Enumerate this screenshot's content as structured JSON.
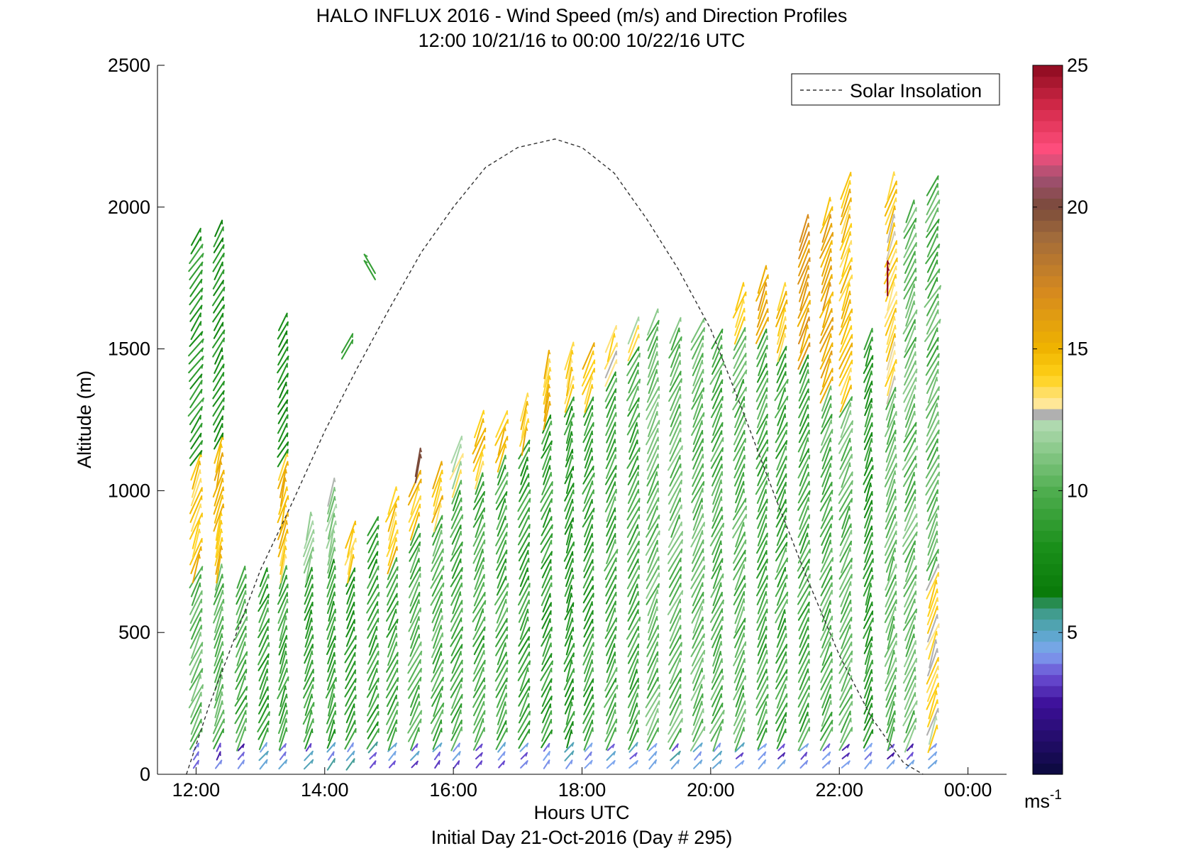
{
  "chart_data": {
    "type": "wind-barb-profile",
    "title": "HALO INFLUX 2016 - Wind Speed (m/s) and Direction Profiles",
    "subtitle": "12:00 10/21/16 to 00:00 10/22/16  UTC",
    "xlabel": "Hours UTC",
    "ylabel": "Altitude (m)",
    "footer": "Initial Day 21-Oct-2016 (Day # 295)",
    "xlim": [
      11.4,
      24.6
    ],
    "ylim": [
      0,
      2500
    ],
    "x_ticks": [
      {
        "value": 12,
        "label": "12:00"
      },
      {
        "value": 14,
        "label": "14:00"
      },
      {
        "value": 16,
        "label": "16:00"
      },
      {
        "value": 18,
        "label": "18:00"
      },
      {
        "value": 20,
        "label": "20:00"
      },
      {
        "value": 22,
        "label": "22:00"
      },
      {
        "value": 24,
        "label": "00:00"
      }
    ],
    "y_ticks": [
      {
        "value": 0,
        "label": "0"
      },
      {
        "value": 500,
        "label": "500"
      },
      {
        "value": 1000,
        "label": "1000"
      },
      {
        "value": 1500,
        "label": "1500"
      },
      {
        "value": 2000,
        "label": "2000"
      },
      {
        "value": 2500,
        "label": "2500"
      }
    ],
    "legend": {
      "position": "top-right",
      "entries": [
        {
          "label": "Solar Insolation",
          "style": "dashed",
          "color": "#000000"
        }
      ]
    },
    "colorbar": {
      "range": [
        0,
        25
      ],
      "ticks": [
        {
          "value": 5,
          "label": "5"
        },
        {
          "value": 10,
          "label": "10"
        },
        {
          "value": 15,
          "label": "15"
        },
        {
          "value": 20,
          "label": "20"
        },
        {
          "value": 25,
          "label": "25"
        }
      ],
      "unit_base": "ms",
      "unit_exp": "-1",
      "colors": [
        {
          "v": 0,
          "c": "#0a0a3c"
        },
        {
          "v": 2.5,
          "c": "#3d0f9a"
        },
        {
          "v": 3.5,
          "c": "#6b4fd4"
        },
        {
          "v": 4.3,
          "c": "#7fa6f0"
        },
        {
          "v": 5.0,
          "c": "#5aa7c8"
        },
        {
          "v": 5.8,
          "c": "#3c9a82"
        },
        {
          "v": 6.4,
          "c": "#0a7a0a"
        },
        {
          "v": 8.0,
          "c": "#1a8f1a"
        },
        {
          "v": 10.0,
          "c": "#4fae4f"
        },
        {
          "v": 12.4,
          "c": "#b3dbb3"
        },
        {
          "v": 12.5,
          "c": "#b0b0b0"
        },
        {
          "v": 12.9,
          "c": "#b0b0b0"
        },
        {
          "v": 13.0,
          "c": "#ffe9a3"
        },
        {
          "v": 14.0,
          "c": "#ffd21a"
        },
        {
          "v": 15.0,
          "c": "#f0b400"
        },
        {
          "v": 17.0,
          "c": "#d68a1e"
        },
        {
          "v": 19.0,
          "c": "#a06a3c"
        },
        {
          "v": 20.0,
          "c": "#7a4a3a"
        },
        {
          "v": 21.0,
          "c": "#a05070"
        },
        {
          "v": 22.0,
          "c": "#ff4f7e"
        },
        {
          "v": 23.5,
          "c": "#d42a4a"
        },
        {
          "v": 25.0,
          "c": "#8c0a1e"
        }
      ]
    },
    "solar_insolation_curve": {
      "x": [
        11.85,
        12.2,
        12.6,
        13.0,
        13.5,
        14.0,
        14.5,
        15.0,
        15.5,
        16.0,
        16.5,
        17.0,
        17.58,
        18.0,
        18.5,
        19.0,
        19.5,
        20.0,
        20.5,
        21.0,
        21.5,
        22.0,
        22.5,
        23.0,
        23.3
      ],
      "y": [
        0,
        240,
        480,
        720,
        960,
        1210,
        1430,
        1640,
        1840,
        2000,
        2140,
        2210,
        2240,
        2210,
        2120,
        1960,
        1780,
        1570,
        1280,
        980,
        690,
        420,
        200,
        40,
        0
      ]
    },
    "profiles": [
      {
        "t": 12.0,
        "top": 1900,
        "segments": [
          {
            "from": 0,
            "to": 100,
            "speed": 3.2,
            "dir": 150
          },
          {
            "from": 100,
            "to": 700,
            "speed": 10.5,
            "dir": 155
          },
          {
            "from": 700,
            "to": 1100,
            "speed": 14.5,
            "dir": 160
          },
          {
            "from": 1100,
            "to": 1900,
            "speed": 8.5,
            "dir": 145
          }
        ]
      },
      {
        "t": 12.35,
        "top": 1950,
        "segments": [
          {
            "from": 0,
            "to": 100,
            "speed": 3.5,
            "dir": 150
          },
          {
            "from": 100,
            "to": 700,
            "speed": 10.0,
            "dir": 160
          },
          {
            "from": 700,
            "to": 1150,
            "speed": 15.0,
            "dir": 165
          },
          {
            "from": 1150,
            "to": 1950,
            "speed": 8.0,
            "dir": 150
          }
        ]
      },
      {
        "t": 12.7,
        "top": 700,
        "segments": [
          {
            "from": 0,
            "to": 100,
            "speed": 3.5,
            "dir": 140
          },
          {
            "from": 100,
            "to": 700,
            "speed": 9.5,
            "dir": 155
          }
        ]
      },
      {
        "t": 13.05,
        "top": 720,
        "segments": [
          {
            "from": 0,
            "to": 100,
            "speed": 4.0,
            "dir": 140
          },
          {
            "from": 100,
            "to": 720,
            "speed": 9.0,
            "dir": 155
          }
        ]
      },
      {
        "t": 13.35,
        "top": 1600,
        "segments": [
          {
            "from": 0,
            "to": 100,
            "speed": 4.0,
            "dir": 140
          },
          {
            "from": 100,
            "to": 700,
            "speed": 9.5,
            "dir": 160
          },
          {
            "from": 700,
            "to": 1100,
            "speed": 14.5,
            "dir": 165
          },
          {
            "from": 1100,
            "to": 1600,
            "speed": 7.5,
            "dir": 150
          }
        ]
      },
      {
        "t": 13.75,
        "top": 900,
        "segments": [
          {
            "from": 0,
            "to": 100,
            "speed": 4.3,
            "dir": 140
          },
          {
            "from": 100,
            "to": 700,
            "speed": 9.0,
            "dir": 160
          },
          {
            "from": 700,
            "to": 900,
            "speed": 11.5,
            "dir": 165
          }
        ]
      },
      {
        "t": 14.1,
        "top": 1000,
        "segments": [
          {
            "from": 0,
            "to": 100,
            "speed": 4.5,
            "dir": 140
          },
          {
            "from": 100,
            "to": 750,
            "speed": 9.0,
            "dir": 160
          },
          {
            "from": 750,
            "to": 1000,
            "speed": 11.5,
            "dir": 165
          }
        ]
      },
      {
        "t": 14.4,
        "top": 870,
        "segments": [
          {
            "from": 0,
            "to": 100,
            "speed": 4.5,
            "dir": 140
          },
          {
            "from": 100,
            "to": 700,
            "speed": 8.5,
            "dir": 155
          },
          {
            "from": 700,
            "to": 870,
            "speed": 14.5,
            "dir": 165
          }
        ]
      },
      {
        "t": 14.75,
        "top": 880,
        "segments": [
          {
            "from": 0,
            "to": 100,
            "speed": 4.5,
            "dir": 140
          },
          {
            "from": 100,
            "to": 880,
            "speed": 9.0,
            "dir": 155
          }
        ]
      },
      {
        "t": 15.05,
        "top": 980,
        "segments": [
          {
            "from": 0,
            "to": 100,
            "speed": 4.5,
            "dir": 140
          },
          {
            "from": 100,
            "to": 750,
            "speed": 9.5,
            "dir": 155
          },
          {
            "from": 750,
            "to": 980,
            "speed": 14.5,
            "dir": 160
          }
        ]
      },
      {
        "t": 15.4,
        "top": 1050,
        "segments": [
          {
            "from": 0,
            "to": 100,
            "speed": 4.0,
            "dir": 140
          },
          {
            "from": 100,
            "to": 850,
            "speed": 10.0,
            "dir": 155
          },
          {
            "from": 850,
            "to": 1050,
            "speed": 14.5,
            "dir": 160
          }
        ]
      },
      {
        "t": 15.75,
        "top": 1080,
        "segments": [
          {
            "from": 0,
            "to": 100,
            "speed": 4.0,
            "dir": 140
          },
          {
            "from": 100,
            "to": 900,
            "speed": 10.0,
            "dir": 155
          },
          {
            "from": 900,
            "to": 1080,
            "speed": 14.5,
            "dir": 160
          }
        ]
      },
      {
        "t": 16.05,
        "top": 1150,
        "segments": [
          {
            "from": 0,
            "to": 100,
            "speed": 4.0,
            "dir": 140
          },
          {
            "from": 100,
            "to": 1000,
            "speed": 9.5,
            "dir": 155
          },
          {
            "from": 1000,
            "to": 1150,
            "speed": 12.7,
            "dir": 160
          }
        ]
      },
      {
        "t": 16.4,
        "top": 1250,
        "segments": [
          {
            "from": 0,
            "to": 100,
            "speed": 4.0,
            "dir": 140
          },
          {
            "from": 100,
            "to": 1050,
            "speed": 9.5,
            "dir": 155
          },
          {
            "from": 1050,
            "to": 1250,
            "speed": 14.5,
            "dir": 160
          }
        ]
      },
      {
        "t": 16.75,
        "top": 1250,
        "segments": [
          {
            "from": 0,
            "to": 100,
            "speed": 4.0,
            "dir": 140
          },
          {
            "from": 100,
            "to": 1100,
            "speed": 9.5,
            "dir": 155
          },
          {
            "from": 1100,
            "to": 1250,
            "speed": 14.5,
            "dir": 160
          }
        ]
      },
      {
        "t": 17.1,
        "top": 1320,
        "segments": [
          {
            "from": 0,
            "to": 100,
            "speed": 4.5,
            "dir": 140
          },
          {
            "from": 100,
            "to": 1150,
            "speed": 9.0,
            "dir": 155
          },
          {
            "from": 1150,
            "to": 1320,
            "speed": 14.5,
            "dir": 165
          }
        ]
      },
      {
        "t": 17.45,
        "top": 1450,
        "segments": [
          {
            "from": 0,
            "to": 100,
            "speed": 4.5,
            "dir": 140
          },
          {
            "from": 100,
            "to": 1250,
            "speed": 9.0,
            "dir": 155
          },
          {
            "from": 1250,
            "to": 1450,
            "speed": 14.5,
            "dir": 165
          }
        ]
      },
      {
        "t": 17.8,
        "top": 1480,
        "segments": [
          {
            "from": 0,
            "to": 100,
            "speed": 4.5,
            "dir": 140
          },
          {
            "from": 100,
            "to": 1300,
            "speed": 8.5,
            "dir": 160
          },
          {
            "from": 1300,
            "to": 1480,
            "speed": 14.0,
            "dir": 165
          }
        ]
      },
      {
        "t": 18.1,
        "top": 1500,
        "segments": [
          {
            "from": 0,
            "to": 100,
            "speed": 4.5,
            "dir": 135
          },
          {
            "from": 100,
            "to": 1300,
            "speed": 9.0,
            "dir": 155
          },
          {
            "from": 1300,
            "to": 1500,
            "speed": 14.5,
            "dir": 160
          }
        ]
      },
      {
        "t": 18.45,
        "top": 1540,
        "segments": [
          {
            "from": 0,
            "to": 100,
            "speed": 4.5,
            "dir": 135
          },
          {
            "from": 100,
            "to": 1400,
            "speed": 9.5,
            "dir": 155
          },
          {
            "from": 1400,
            "to": 1540,
            "speed": 13.5,
            "dir": 160
          }
        ]
      },
      {
        "t": 18.8,
        "top": 1580,
        "segments": [
          {
            "from": 0,
            "to": 100,
            "speed": 4.5,
            "dir": 135
          },
          {
            "from": 100,
            "to": 1500,
            "speed": 9.5,
            "dir": 155
          },
          {
            "from": 1500,
            "to": 1580,
            "speed": 12.7,
            "dir": 160
          }
        ]
      },
      {
        "t": 19.1,
        "top": 1600,
        "segments": [
          {
            "from": 0,
            "to": 100,
            "speed": 4.5,
            "dir": 135
          },
          {
            "from": 100,
            "to": 1600,
            "speed": 10.5,
            "dir": 155
          }
        ]
      },
      {
        "t": 19.45,
        "top": 1580,
        "segments": [
          {
            "from": 0,
            "to": 100,
            "speed": 4.5,
            "dir": 135
          },
          {
            "from": 100,
            "to": 1580,
            "speed": 10.5,
            "dir": 155
          }
        ]
      },
      {
        "t": 19.8,
        "top": 1580,
        "segments": [
          {
            "from": 0,
            "to": 100,
            "speed": 4.5,
            "dir": 135
          },
          {
            "from": 100,
            "to": 1580,
            "speed": 10.5,
            "dir": 155
          }
        ]
      },
      {
        "t": 20.1,
        "top": 1560,
        "segments": [
          {
            "from": 0,
            "to": 100,
            "speed": 4.5,
            "dir": 135
          },
          {
            "from": 100,
            "to": 1560,
            "speed": 10.0,
            "dir": 155
          }
        ]
      },
      {
        "t": 20.45,
        "top": 1700,
        "segments": [
          {
            "from": 0,
            "to": 100,
            "speed": 4.0,
            "dir": 135
          },
          {
            "from": 100,
            "to": 1550,
            "speed": 10.0,
            "dir": 155
          },
          {
            "from": 1550,
            "to": 1700,
            "speed": 14.5,
            "dir": 160
          }
        ]
      },
      {
        "t": 20.8,
        "top": 1750,
        "segments": [
          {
            "from": 0,
            "to": 100,
            "speed": 4.0,
            "dir": 135
          },
          {
            "from": 100,
            "to": 1550,
            "speed": 9.5,
            "dir": 155
          },
          {
            "from": 1550,
            "to": 1750,
            "speed": 16.0,
            "dir": 160
          }
        ]
      },
      {
        "t": 21.1,
        "top": 1700,
        "segments": [
          {
            "from": 0,
            "to": 100,
            "speed": 4.0,
            "dir": 135
          },
          {
            "from": 100,
            "to": 1500,
            "speed": 9.5,
            "dir": 155
          },
          {
            "from": 1500,
            "to": 1700,
            "speed": 14.5,
            "dir": 160
          }
        ]
      },
      {
        "t": 21.45,
        "top": 1950,
        "segments": [
          {
            "from": 0,
            "to": 100,
            "speed": 3.5,
            "dir": 135
          },
          {
            "from": 100,
            "to": 1450,
            "speed": 9.5,
            "dir": 155
          },
          {
            "from": 1450,
            "to": 1950,
            "speed": 16.0,
            "dir": 160
          }
        ]
      },
      {
        "t": 21.8,
        "top": 2000,
        "segments": [
          {
            "from": 0,
            "to": 100,
            "speed": 3.5,
            "dir": 135
          },
          {
            "from": 100,
            "to": 1350,
            "speed": 10.0,
            "dir": 155
          },
          {
            "from": 1350,
            "to": 2000,
            "speed": 15.5,
            "dir": 160
          }
        ]
      },
      {
        "t": 22.1,
        "top": 2100,
        "segments": [
          {
            "from": 0,
            "to": 100,
            "speed": 3.5,
            "dir": 135
          },
          {
            "from": 100,
            "to": 1300,
            "speed": 10.5,
            "dir": 155
          },
          {
            "from": 1300,
            "to": 2100,
            "speed": 14.5,
            "dir": 160
          }
        ]
      },
      {
        "t": 22.45,
        "top": 1550,
        "segments": [
          {
            "from": 0,
            "to": 100,
            "speed": 3.5,
            "dir": 135
          },
          {
            "from": 100,
            "to": 1550,
            "speed": 8.5,
            "dir": 160
          }
        ]
      },
      {
        "t": 22.8,
        "top": 2100,
        "segments": [
          {
            "from": 0,
            "to": 100,
            "speed": 3.5,
            "dir": 135
          },
          {
            "from": 100,
            "to": 1350,
            "speed": 10.5,
            "dir": 160
          },
          {
            "from": 1350,
            "to": 2100,
            "speed": 14.0,
            "dir": 160
          }
        ]
      },
      {
        "t": 23.1,
        "top": 2000,
        "segments": [
          {
            "from": 0,
            "to": 100,
            "speed": 3.5,
            "dir": 135
          },
          {
            "from": 100,
            "to": 2000,
            "speed": 10.5,
            "dir": 155
          }
        ]
      },
      {
        "t": 23.45,
        "top": 2100,
        "segments": [
          {
            "from": 0,
            "to": 100,
            "speed": 3.5,
            "dir": 135
          },
          {
            "from": 100,
            "to": 700,
            "speed": 13.5,
            "dir": 160
          },
          {
            "from": 700,
            "to": 1400,
            "speed": 10.5,
            "dir": 155
          },
          {
            "from": 1400,
            "to": 2100,
            "speed": 10.0,
            "dir": 150
          }
        ]
      }
    ],
    "isolated_barbs": [
      {
        "t": 14.7,
        "alt": 1800,
        "speed": 9.0,
        "dir": 210
      },
      {
        "t": 14.35,
        "alt": 1520,
        "speed": 9.0,
        "dir": 150
      },
      {
        "t": 15.45,
        "alt": 1100,
        "speed": 20.0,
        "dir": 170
      },
      {
        "t": 22.75,
        "alt": 1760,
        "speed": 25.0,
        "dir": 180
      }
    ]
  }
}
